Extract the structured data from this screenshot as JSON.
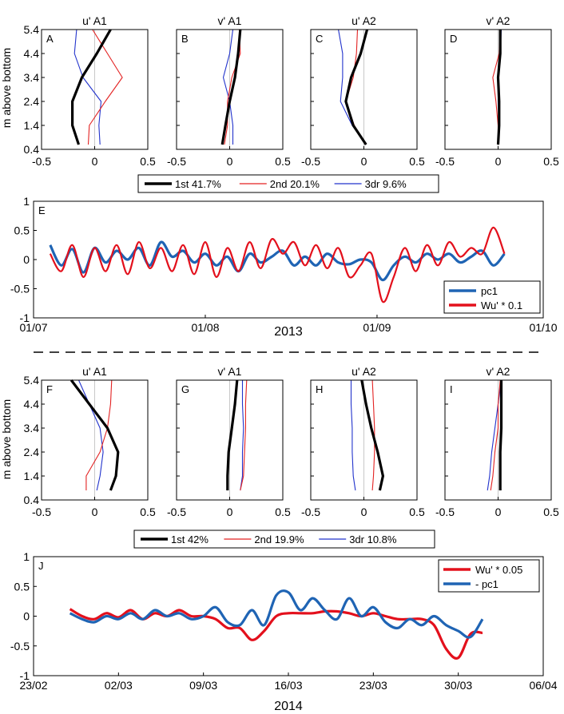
{
  "figure": {
    "ylabel": "m above bottom",
    "year_top": "2013",
    "year_bottom": "2014"
  },
  "chart_data": [
    {
      "type": "line",
      "label": "A",
      "title": "u' A1",
      "xlim": [
        -0.5,
        0.5
      ],
      "ylim": [
        0.4,
        5.4
      ],
      "xticks": [
        "-0.5",
        "0",
        "0.5"
      ],
      "yticks": [
        "0.4",
        "1.4",
        "2.4",
        "3.4",
        "4.4",
        "5.4"
      ],
      "y": [
        0.6,
        1.4,
        2.4,
        3.4,
        4.4,
        5.4
      ],
      "series": [
        {
          "name": "1st",
          "color": "#000000",
          "width": 3.2,
          "x": [
            -0.15,
            -0.21,
            -0.21,
            -0.12,
            0.02,
            0.15
          ]
        },
        {
          "name": "2nd",
          "color": "#e32222",
          "width": 1.1,
          "x": [
            -0.06,
            -0.05,
            0.1,
            0.26,
            0.12,
            -0.02
          ]
        },
        {
          "name": "3dr",
          "color": "#2233cc",
          "width": 1.1,
          "x": [
            0.05,
            0.04,
            0.06,
            -0.11,
            -0.19,
            -0.17
          ]
        }
      ]
    },
    {
      "type": "line",
      "label": "B",
      "title": "v' A1",
      "xlim": [
        -0.5,
        0.5
      ],
      "ylim": [
        0.4,
        5.4
      ],
      "xticks": [
        "-0.5",
        "0",
        "0.5"
      ],
      "yticks": [],
      "y": [
        0.6,
        1.4,
        2.4,
        3.4,
        4.4,
        5.4
      ],
      "series": [
        {
          "name": "1st",
          "color": "#000000",
          "width": 3.2,
          "x": [
            -0.07,
            -0.04,
            0.0,
            0.05,
            0.08,
            0.1
          ]
        },
        {
          "name": "2nd",
          "color": "#e32222",
          "width": 1.1,
          "x": [
            -0.05,
            -0.02,
            -0.02,
            0.02,
            0.1,
            0.09
          ]
        },
        {
          "name": "3dr",
          "color": "#2233cc",
          "width": 1.1,
          "x": [
            0.03,
            0.03,
            0.0,
            -0.06,
            0.0,
            0.03
          ]
        }
      ]
    },
    {
      "type": "line",
      "label": "C",
      "title": "u' A2",
      "xlim": [
        -0.5,
        0.5
      ],
      "ylim": [
        0.4,
        5.4
      ],
      "xticks": [
        "-0.5",
        "0",
        "0.5"
      ],
      "yticks": [],
      "y": [
        0.6,
        1.4,
        2.4,
        3.4,
        4.4,
        5.4
      ],
      "series": [
        {
          "name": "1st",
          "color": "#000000",
          "width": 3.2,
          "x": [
            0.02,
            -0.1,
            -0.17,
            -0.12,
            -0.03,
            0.03
          ]
        },
        {
          "name": "2nd",
          "color": "#e32222",
          "width": 1.1,
          "x": [
            0.02,
            -0.09,
            -0.17,
            -0.1,
            -0.07,
            -0.06
          ]
        },
        {
          "name": "3dr",
          "color": "#2233cc",
          "width": 1.1,
          "x": [
            0.02,
            -0.11,
            -0.22,
            -0.2,
            -0.2,
            -0.24
          ]
        }
      ]
    },
    {
      "type": "line",
      "label": "D",
      "title": "v' A2",
      "xlim": [
        -0.5,
        0.5
      ],
      "ylim": [
        0.4,
        5.4
      ],
      "xticks": [
        "-0.5",
        "0",
        "0.5"
      ],
      "yticks": [],
      "y": [
        0.6,
        1.4,
        2.4,
        3.4,
        4.4,
        5.4
      ],
      "series": [
        {
          "name": "1st",
          "color": "#000000",
          "width": 3.2,
          "x": [
            0.0,
            0.01,
            0.01,
            0.0,
            0.02,
            0.02
          ]
        },
        {
          "name": "2nd",
          "color": "#e32222",
          "width": 1.1,
          "x": [
            0.0,
            0.0,
            -0.02,
            -0.05,
            0.01,
            0.02
          ]
        },
        {
          "name": "3dr",
          "color": "#2233cc",
          "width": 1.1,
          "x": [
            0.0,
            0.01,
            0.0,
            0.0,
            0.02,
            0.03
          ]
        }
      ]
    },
    {
      "type": "line",
      "label": "E",
      "ylim": [
        -1,
        1
      ],
      "yticks": [
        "-1",
        "-0.5",
        "0",
        "0.5",
        "1"
      ],
      "xticks": [
        "01/07",
        "01/08",
        "01/09",
        "01/10"
      ],
      "legend": "bottom-right",
      "series": [
        {
          "name": "pc1",
          "color": "#1f64b4",
          "width": 3.2,
          "x": [
            "07-04",
            "07-06",
            "07-08",
            "07-10",
            "07-12",
            "07-14",
            "07-16",
            "07-18",
            "07-20",
            "07-22",
            "07-24",
            "07-26",
            "07-28",
            "07-30",
            "08-01",
            "08-03",
            "08-05",
            "08-07",
            "08-09",
            "08-11",
            "08-13",
            "08-15",
            "08-17",
            "08-19",
            "08-21",
            "08-23",
            "08-25",
            "08-27",
            "08-29",
            "08-31",
            "09-02",
            "09-04",
            "09-06",
            "09-08",
            "09-10",
            "09-12",
            "09-14",
            "09-16",
            "09-18",
            "09-20",
            "09-22",
            "09-24"
          ],
          "y": [
            0.25,
            -0.1,
            0.18,
            -0.22,
            0.2,
            -0.05,
            0.15,
            0.0,
            0.2,
            -0.1,
            0.3,
            0.05,
            0.15,
            -0.05,
            0.1,
            -0.1,
            0.05,
            -0.2,
            0.1,
            -0.05,
            0.05,
            0.15,
            -0.1,
            0.05,
            -0.1,
            0.1,
            -0.05,
            -0.08,
            0.0,
            -0.05,
            -0.35,
            -0.1,
            0.05,
            -0.05,
            0.1,
            0.0,
            0.1,
            -0.05,
            0.05,
            0.15,
            -0.1,
            0.1
          ]
        },
        {
          "name": "Wu' * 0.1",
          "color": "#e3101c",
          "width": 2.2,
          "x": [
            "07-04",
            "07-06",
            "07-08",
            "07-10",
            "07-12",
            "07-14",
            "07-16",
            "07-18",
            "07-20",
            "07-22",
            "07-24",
            "07-26",
            "07-28",
            "07-30",
            "08-01",
            "08-03",
            "08-05",
            "08-07",
            "08-09",
            "08-11",
            "08-13",
            "08-15",
            "08-17",
            "08-19",
            "08-21",
            "08-23",
            "08-25",
            "08-27",
            "08-29",
            "08-31",
            "09-02",
            "09-04",
            "09-06",
            "09-08",
            "09-10",
            "09-12",
            "09-14",
            "09-16",
            "09-18",
            "09-20",
            "09-22",
            "09-24"
          ],
          "y": [
            0.1,
            -0.2,
            0.25,
            -0.3,
            0.2,
            -0.2,
            0.25,
            -0.25,
            0.3,
            -0.15,
            0.2,
            -0.2,
            0.25,
            -0.25,
            0.3,
            -0.3,
            0.2,
            -0.2,
            0.3,
            -0.15,
            0.35,
            0.1,
            0.3,
            -0.1,
            0.25,
            -0.15,
            0.2,
            -0.3,
            -0.1,
            0.1,
            -0.72,
            -0.3,
            0.2,
            -0.2,
            0.25,
            -0.1,
            0.3,
            0.05,
            0.2,
            0.1,
            0.55,
            0.1
          ]
        }
      ]
    },
    {
      "type": "line",
      "label": "F",
      "title": "u' A1",
      "xlim": [
        -0.5,
        0.5
      ],
      "ylim": [
        0.4,
        5.4
      ],
      "xticks": [
        "-0.5",
        "0",
        "0.5"
      ],
      "yticks": [
        "0.4",
        "1.4",
        "2.4",
        "3.4",
        "4.4",
        "5.4"
      ],
      "y": [
        0.8,
        1.4,
        2.4,
        3.4,
        4.4,
        5.4
      ],
      "series": [
        {
          "name": "1st",
          "color": "#000000",
          "width": 3.2,
          "x": [
            0.15,
            0.2,
            0.22,
            0.12,
            -0.05,
            -0.22
          ]
        },
        {
          "name": "2nd",
          "color": "#e32222",
          "width": 1.1,
          "x": [
            -0.08,
            -0.08,
            0.05,
            0.12,
            0.15,
            0.16
          ]
        },
        {
          "name": "3dr",
          "color": "#2233cc",
          "width": 1.1,
          "x": [
            0.02,
            0.05,
            0.08,
            0.05,
            -0.05,
            -0.15
          ]
        }
      ]
    },
    {
      "type": "line",
      "label": "G",
      "title": "v' A1",
      "xlim": [
        -0.5,
        0.5
      ],
      "ylim": [
        0.4,
        5.4
      ],
      "xticks": [
        "-0.5",
        "0",
        "0.5"
      ],
      "yticks": [],
      "y": [
        0.8,
        1.4,
        2.4,
        3.4,
        4.4,
        5.4
      ],
      "series": [
        {
          "name": "1st",
          "color": "#000000",
          "width": 3.2,
          "x": [
            -0.02,
            -0.02,
            -0.01,
            0.02,
            0.05,
            0.07
          ]
        },
        {
          "name": "2nd",
          "color": "#e32222",
          "width": 1.1,
          "x": [
            0.1,
            0.13,
            0.14,
            0.15,
            0.15,
            0.16
          ]
        },
        {
          "name": "3dr",
          "color": "#2233cc",
          "width": 1.1,
          "x": [
            0.1,
            0.12,
            0.12,
            0.13,
            0.12,
            0.12
          ]
        }
      ]
    },
    {
      "type": "line",
      "label": "H",
      "title": "u' A2",
      "xlim": [
        -0.5,
        0.5
      ],
      "ylim": [
        0.4,
        5.4
      ],
      "xticks": [
        "-0.5",
        "0",
        "0.5"
      ],
      "yticks": [],
      "y": [
        0.8,
        1.4,
        2.4,
        3.4,
        4.4,
        5.4
      ],
      "series": [
        {
          "name": "1st",
          "color": "#000000",
          "width": 3.2,
          "x": [
            0.15,
            0.18,
            0.13,
            0.07,
            0.02,
            -0.02
          ]
        },
        {
          "name": "2nd",
          "color": "#e32222",
          "width": 1.1,
          "x": [
            0.08,
            0.09,
            0.1,
            0.1,
            0.09,
            0.08
          ]
        },
        {
          "name": "3dr",
          "color": "#2233cc",
          "width": 1.1,
          "x": [
            -0.08,
            -0.1,
            -0.11,
            -0.11,
            -0.12,
            -0.12
          ]
        }
      ]
    },
    {
      "type": "line",
      "label": "I",
      "title": "v' A2",
      "xlim": [
        -0.5,
        0.5
      ],
      "ylim": [
        0.4,
        5.4
      ],
      "xticks": [
        "-0.5",
        "0",
        "0.5"
      ],
      "yticks": [],
      "y": [
        0.8,
        1.4,
        2.4,
        3.4,
        4.4,
        5.4
      ],
      "series": [
        {
          "name": "1st",
          "color": "#000000",
          "width": 3.2,
          "x": [
            0.02,
            0.02,
            0.02,
            0.03,
            0.03,
            0.03
          ]
        },
        {
          "name": "2nd",
          "color": "#e32222",
          "width": 1.1,
          "x": [
            -0.07,
            -0.05,
            -0.03,
            0.0,
            0.0,
            0.02
          ]
        },
        {
          "name": "3dr",
          "color": "#2233cc",
          "width": 1.1,
          "x": [
            -0.1,
            -0.08,
            -0.06,
            -0.03,
            0.0,
            0.03
          ]
        }
      ]
    },
    {
      "type": "line",
      "label": "J",
      "ylim": [
        -1,
        1
      ],
      "yticks": [
        "-1",
        "-0.5",
        "0",
        "0.5",
        "1"
      ],
      "xticks": [
        "23/02",
        "02/03",
        "09/03",
        "16/03",
        "23/03",
        "30/03",
        "06/04"
      ],
      "legend": "top-right",
      "series": [
        {
          "name": "Wu' * 0.05",
          "color": "#e3101c",
          "width": 3.2,
          "x": [
            "02-26",
            "02-27",
            "02-28",
            "03-01",
            "03-02",
            "03-03",
            "03-04",
            "03-05",
            "03-06",
            "03-07",
            "03-08",
            "03-09",
            "03-10",
            "03-11",
            "03-12",
            "03-13",
            "03-14",
            "03-15",
            "03-16",
            "03-17",
            "03-18",
            "03-19",
            "03-20",
            "03-21",
            "03-22",
            "03-23",
            "03-24",
            "03-25",
            "03-26",
            "03-27",
            "03-28",
            "03-29",
            "03-30",
            "03-31",
            "04-01"
          ],
          "y": [
            0.12,
            0.0,
            -0.05,
            0.05,
            -0.02,
            0.1,
            -0.05,
            0.05,
            0.0,
            0.1,
            0.0,
            0.0,
            -0.05,
            -0.2,
            -0.2,
            -0.4,
            -0.25,
            0.0,
            0.05,
            0.05,
            0.05,
            0.08,
            0.08,
            0.05,
            0.0,
            0.05,
            0.0,
            -0.05,
            -0.05,
            -0.05,
            -0.15,
            -0.55,
            -0.7,
            -0.3,
            -0.28
          ]
        },
        {
          "name": "- pc1",
          "color": "#1f64b4",
          "width": 3.2,
          "x": [
            "02-26",
            "02-27",
            "02-28",
            "03-01",
            "03-02",
            "03-03",
            "03-04",
            "03-05",
            "03-06",
            "03-07",
            "03-08",
            "03-09",
            "03-10",
            "03-11",
            "03-12",
            "03-13",
            "03-14",
            "03-15",
            "03-16",
            "03-17",
            "03-18",
            "03-19",
            "03-20",
            "03-21",
            "03-22",
            "03-23",
            "03-24",
            "03-25",
            "03-26",
            "03-27",
            "03-28",
            "03-29",
            "03-30",
            "03-31",
            "04-01"
          ],
          "y": [
            0.05,
            -0.05,
            -0.1,
            0.0,
            -0.05,
            0.05,
            -0.05,
            0.1,
            0.0,
            0.05,
            -0.05,
            0.0,
            0.15,
            -0.1,
            -0.15,
            0.1,
            -0.15,
            0.35,
            0.4,
            0.1,
            0.3,
            0.1,
            -0.05,
            0.3,
            0.0,
            0.15,
            -0.1,
            -0.2,
            -0.05,
            -0.15,
            0.0,
            -0.15,
            -0.25,
            -0.35,
            -0.05
          ]
        }
      ]
    }
  ],
  "legends": {
    "profiles_top": [
      {
        "text": "1st 41.7%",
        "color": "#000000",
        "width": 3.5
      },
      {
        "text": "2nd 20.1%",
        "color": "#e32222",
        "width": 1.2
      },
      {
        "text": "3dr 9.6%",
        "color": "#2233cc",
        "width": 1.2
      }
    ],
    "profiles_bottom": [
      {
        "text": "1st 42%",
        "color": "#000000",
        "width": 3.5
      },
      {
        "text": "2nd 19.9%",
        "color": "#e32222",
        "width": 1.2
      },
      {
        "text": "3dr 10.8%",
        "color": "#2233cc",
        "width": 1.2
      }
    ]
  }
}
